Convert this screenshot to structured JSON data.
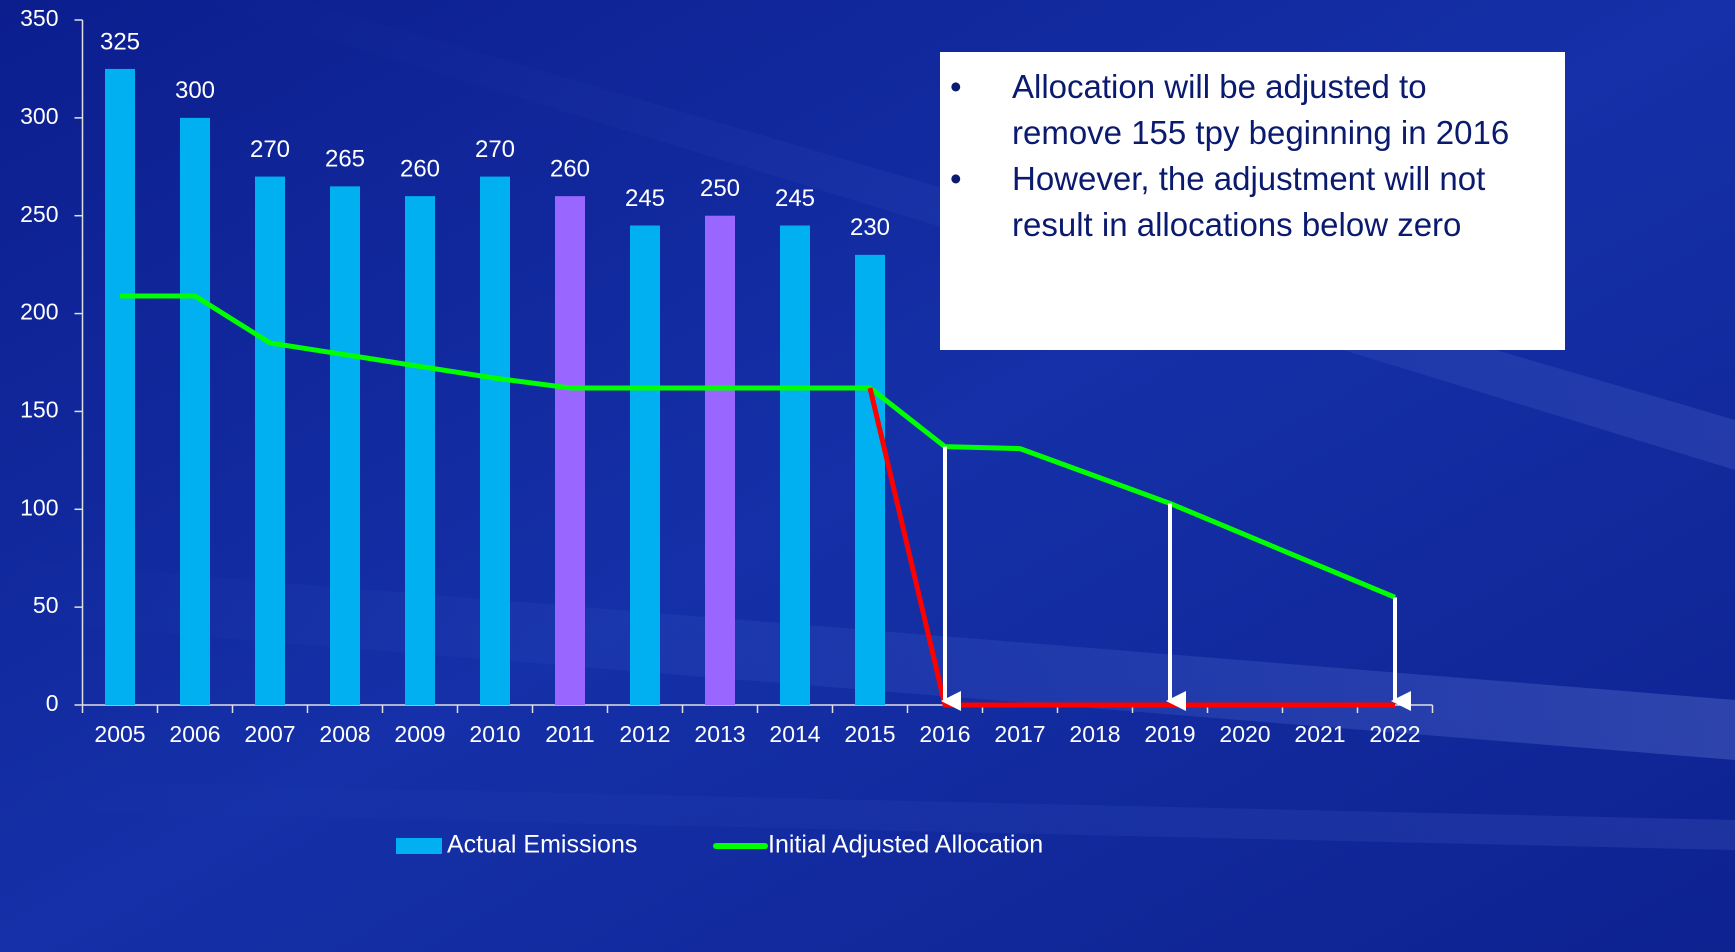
{
  "chart_data": {
    "type": "bar",
    "categories": [
      "2005",
      "2006",
      "2007",
      "2008",
      "2009",
      "2010",
      "2011",
      "2012",
      "2013",
      "2014",
      "2015",
      "2016",
      "2017",
      "2018",
      "2019",
      "2020",
      "2021",
      "2022"
    ],
    "series": [
      {
        "name": "Actual Emissions",
        "type": "bar",
        "color": "#00b0f0",
        "colors": [
          "#00b0f0",
          "#00b0f0",
          "#00b0f0",
          "#00b0f0",
          "#00b0f0",
          "#00b0f0",
          "#9966ff",
          "#00b0f0",
          "#9966ff",
          "#00b0f0",
          "#00b0f0",
          null,
          null,
          null,
          null,
          null,
          null,
          null
        ],
        "values": [
          325,
          300,
          270,
          265,
          260,
          270,
          260,
          245,
          250,
          245,
          230,
          null,
          null,
          null,
          null,
          null,
          null,
          null
        ]
      },
      {
        "name": "Initial Adjusted Allocation",
        "type": "line",
        "color": "#00ff00",
        "values": [
          209,
          209,
          185,
          179,
          173,
          167,
          162,
          162,
          162,
          162,
          162,
          132,
          131,
          117,
          103,
          87,
          71,
          55
        ]
      },
      {
        "type": "line",
        "color": "#ff0000",
        "values": [
          null,
          null,
          null,
          null,
          null,
          null,
          null,
          null,
          null,
          null,
          162,
          0,
          0,
          0,
          0,
          0,
          0,
          0
        ]
      }
    ],
    "arrow_categories": [
      "2016",
      "2019",
      "2022"
    ],
    "annotations": [
      "Allocation will be adjusted to remove 155 tpy beginning in 2016",
      "However, the adjustment will not result in allocations below zero"
    ],
    "ylim": [
      0,
      350
    ],
    "yticks": [
      0,
      50,
      100,
      150,
      200,
      250,
      300,
      350
    ],
    "legend": "bottom"
  }
}
